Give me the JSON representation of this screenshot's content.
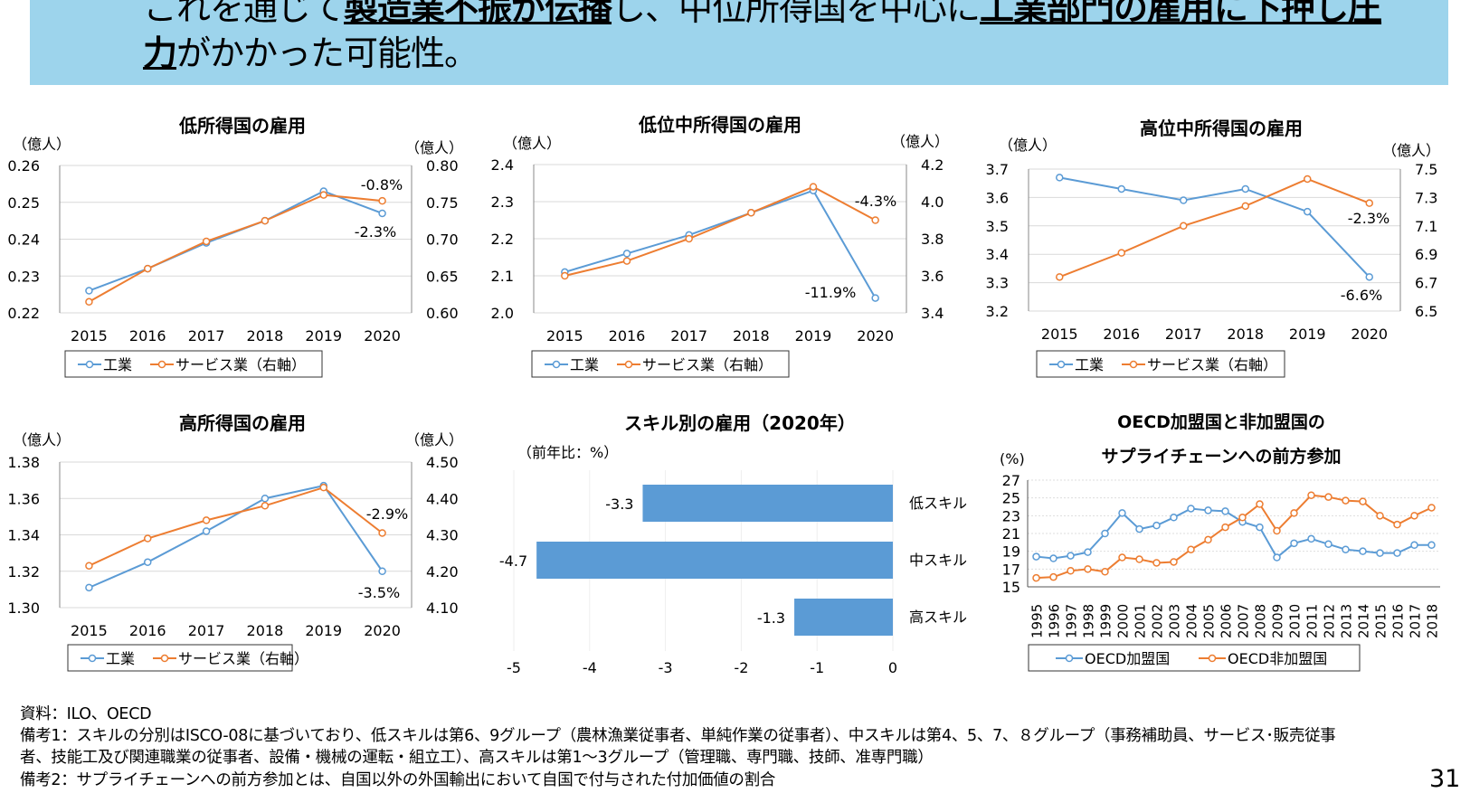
{
  "header": {
    "line1": [
      {
        "text": "これを通じて",
        "bold": false
      },
      {
        "text": "製造業不振が伝播",
        "bold": true
      },
      {
        "text": "し、中位所得国を中心に",
        "bold": false
      },
      {
        "text": "工業部門の雇用に下押し圧",
        "bold": true
      }
    ],
    "line2": [
      {
        "text": "力",
        "bold": true
      },
      {
        "text": "がかかった可能性。",
        "bold": false
      }
    ],
    "background": "#9dd4ec"
  },
  "colors": {
    "industry": "#5b9bd5",
    "services": "#ed7d31",
    "bar": "#5b9bd5"
  },
  "chart_data": [
    {
      "id": "c1",
      "type": "line",
      "title": "低所得国の雇用",
      "left_unit": "（億人）",
      "right_unit": "（億人）",
      "categories": [
        "2015",
        "2016",
        "2017",
        "2018",
        "2019",
        "2020"
      ],
      "ylim": [
        0.22,
        0.26
      ],
      "yticks": [
        "0.22",
        "0.23",
        "0.24",
        "0.25",
        "0.26"
      ],
      "y2lim": [
        0.6,
        0.8
      ],
      "y2ticks": [
        "0.60",
        "0.65",
        "0.70",
        "0.75",
        "0.80"
      ],
      "series": [
        {
          "name": "工業",
          "axis": "left",
          "values": [
            0.226,
            0.232,
            0.239,
            0.245,
            0.253,
            0.247
          ]
        },
        {
          "name": "サービス業（右軸）",
          "axis": "right",
          "values": [
            0.615,
            0.66,
            0.697,
            0.725,
            0.76,
            0.752
          ]
        }
      ],
      "annotations": [
        "-0.8%",
        "-2.3%"
      ]
    },
    {
      "id": "c2",
      "type": "line",
      "title": "低位中所得国の雇用",
      "left_unit": "（億人）",
      "right_unit": "（億人）",
      "categories": [
        "2015",
        "2016",
        "2017",
        "2018",
        "2019",
        "2020"
      ],
      "ylim": [
        2.0,
        2.4
      ],
      "yticks": [
        "2.0",
        "2.1",
        "2.2",
        "2.3",
        "2.4"
      ],
      "y2lim": [
        3.4,
        4.2
      ],
      "y2ticks": [
        "3.4",
        "3.6",
        "3.8",
        "4.0",
        "4.2"
      ],
      "series": [
        {
          "name": "工業",
          "axis": "left",
          "values": [
            2.11,
            2.16,
            2.21,
            2.27,
            2.33,
            2.04
          ]
        },
        {
          "name": "サービス業（右軸）",
          "axis": "right",
          "values": [
            3.6,
            3.68,
            3.8,
            3.94,
            4.08,
            3.9
          ]
        }
      ],
      "annotations": [
        "-4.3%",
        "-11.9%"
      ]
    },
    {
      "id": "c3",
      "type": "line",
      "title": "高位中所得国の雇用",
      "left_unit": "（億人）",
      "right_unit": "（億人）",
      "categories": [
        "2015",
        "2016",
        "2017",
        "2018",
        "2019",
        "2020"
      ],
      "ylim": [
        3.2,
        3.7
      ],
      "yticks": [
        "3.2",
        "3.3",
        "3.4",
        "3.5",
        "3.6",
        "3.7"
      ],
      "y2lim": [
        6.5,
        7.5
      ],
      "y2ticks": [
        "6.5",
        "6.7",
        "6.9",
        "7.1",
        "7.3",
        "7.5"
      ],
      "series": [
        {
          "name": "工業",
          "axis": "left",
          "values": [
            3.67,
            3.63,
            3.59,
            3.63,
            3.55,
            3.32
          ]
        },
        {
          "name": "サービス業（右軸）",
          "axis": "right",
          "values": [
            6.74,
            6.91,
            7.1,
            7.24,
            7.43,
            7.26
          ]
        }
      ],
      "annotations": [
        "-2.3%",
        "-6.6%"
      ]
    },
    {
      "id": "c4",
      "type": "line",
      "title": "高所得国の雇用",
      "left_unit": "（億人）",
      "right_unit": "（億人）",
      "categories": [
        "2015",
        "2016",
        "2017",
        "2018",
        "2019",
        "2020"
      ],
      "ylim": [
        1.3,
        1.38
      ],
      "yticks": [
        "1.30",
        "1.32",
        "1.34",
        "1.36",
        "1.38"
      ],
      "y2lim": [
        4.1,
        4.5
      ],
      "y2ticks": [
        "4.10",
        "4.20",
        "4.30",
        "4.40",
        "4.50"
      ],
      "series": [
        {
          "name": "工業",
          "axis": "left",
          "values": [
            1.311,
            1.325,
            1.342,
            1.36,
            1.367,
            1.32
          ]
        },
        {
          "name": "サービス業（右軸）",
          "axis": "right",
          "values": [
            4.215,
            4.29,
            4.34,
            4.38,
            4.43,
            4.305
          ]
        }
      ],
      "annotations": [
        "-2.9%",
        "-3.5%"
      ]
    },
    {
      "id": "c5",
      "type": "bar",
      "title": "スキル別の雇用（2020年）",
      "unit": "（前年比：%）",
      "categories": [
        "低スキル",
        "中スキル",
        "高スキル"
      ],
      "values": [
        -3.3,
        -4.7,
        -1.3
      ],
      "xlim": [
        -5,
        0
      ],
      "xticks": [
        "-5",
        "-4",
        "-3",
        "-2",
        "-1",
        "0"
      ]
    },
    {
      "id": "c6",
      "type": "line",
      "title": "OECD加盟国と非加盟国の",
      "title2": "サプライチェーンへの前方参加",
      "unit": "(%)",
      "categories": [
        "1995",
        "1996",
        "1997",
        "1998",
        "1999",
        "2000",
        "2001",
        "2002",
        "2003",
        "2004",
        "2005",
        "2006",
        "2007",
        "2008",
        "2009",
        "2010",
        "2011",
        "2012",
        "2013",
        "2014",
        "2015",
        "2016",
        "2017",
        "2018"
      ],
      "ylim": [
        15,
        27
      ],
      "yticks": [
        "15",
        "17",
        "19",
        "21",
        "23",
        "25",
        "27"
      ],
      "series": [
        {
          "name": "OECD加盟国",
          "values": [
            18.4,
            18.2,
            18.5,
            18.9,
            21.0,
            23.3,
            21.5,
            21.9,
            22.8,
            23.8,
            23.6,
            23.5,
            22.3,
            21.7,
            18.3,
            19.9,
            20.4,
            19.8,
            19.2,
            19.0,
            18.8,
            18.8,
            19.7,
            19.7
          ]
        },
        {
          "name": "OECD非加盟国",
          "values": [
            16.0,
            16.1,
            16.8,
            17.0,
            16.7,
            18.3,
            18.1,
            17.7,
            17.8,
            19.2,
            20.3,
            21.7,
            22.8,
            24.3,
            21.3,
            23.3,
            25.3,
            25.1,
            24.7,
            24.6,
            23.0,
            22.0,
            23.0,
            23.9
          ]
        }
      ]
    }
  ],
  "footer": {
    "source": "資料：ILO、OECD",
    "note1a": "備考1：スキルの分別はISCO-08に基づいており、低スキルは第6、9グループ（農林漁業従事者、単純作業の従事者）、中スキルは第4、5、7、８グループ（事務補助員、サービス･販売従事",
    "note1b": "者、技能工及び関連職業の従事者、設備・機械の運転・組立工）、高スキルは第1～3グループ（管理職、専門職、技師、准専門職）",
    "note2": "備考2：サプライチェーンへの前方参加とは、自国以外の外国輸出において自国で付与された付加価値の割合",
    "page": "31"
  }
}
